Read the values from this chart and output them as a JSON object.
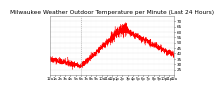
{
  "title": "Milwaukee Weather Outdoor Temperature per Minute (Last 24 Hours)",
  "background_color": "#ffffff",
  "plot_bg_color": "#ffffff",
  "line_color": "#ff0000",
  "grid_color": "#cccccc",
  "ylim": [
    20,
    75
  ],
  "yticks": [
    25,
    30,
    35,
    40,
    45,
    50,
    55,
    60,
    65,
    70
  ],
  "num_points": 1440,
  "vline_x": 360,
  "vline_color": "#999999",
  "noise_scale": 1.5,
  "title_fontsize": 4.2,
  "tick_fontsize": 3.0
}
